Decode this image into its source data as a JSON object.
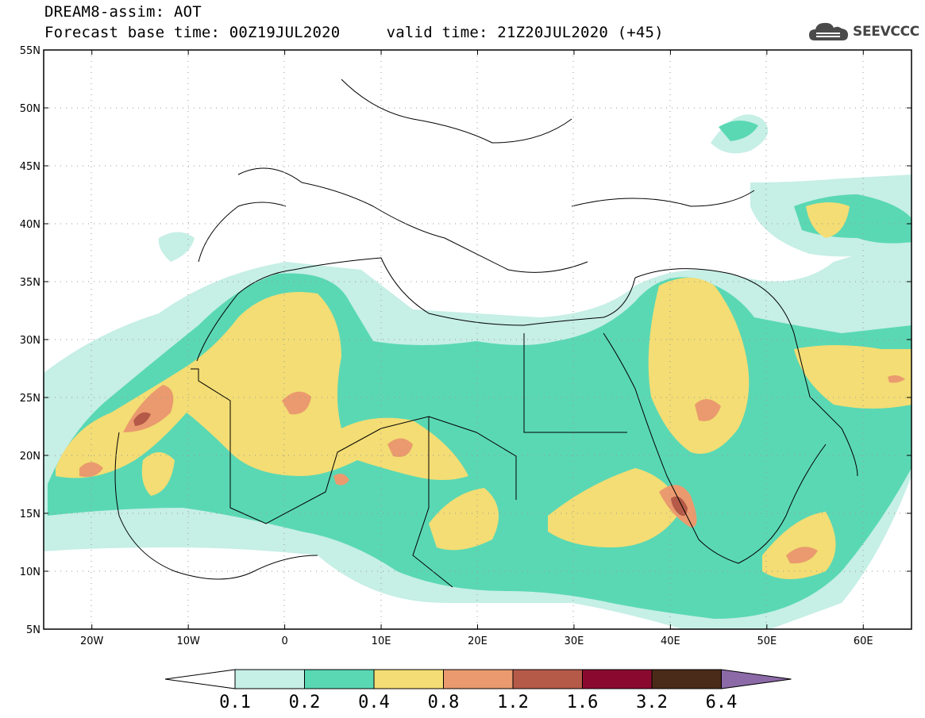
{
  "header": {
    "title": "DREAM8-assim: AOT",
    "subtitle": "Forecast base time: 00Z19JUL2020     valid time: 21Z20JUL2020 (+45)"
  },
  "logo": {
    "text": "SEEVCCC",
    "icon": "cloud-icon",
    "color": "#444444"
  },
  "map": {
    "lon_ticks": [
      {
        "lon": -20,
        "label": "20W"
      },
      {
        "lon": -10,
        "label": "10W"
      },
      {
        "lon": 0,
        "label": "0"
      },
      {
        "lon": 10,
        "label": "10E"
      },
      {
        "lon": 20,
        "label": "20E"
      },
      {
        "lon": 30,
        "label": "30E"
      },
      {
        "lon": 40,
        "label": "40E"
      },
      {
        "lon": 50,
        "label": "50E"
      },
      {
        "lon": 60,
        "label": "60E"
      }
    ],
    "lat_ticks": [
      {
        "lat": 5,
        "label": "5N"
      },
      {
        "lat": 10,
        "label": "10N"
      },
      {
        "lat": 15,
        "label": "15N"
      },
      {
        "lat": 20,
        "label": "20N"
      },
      {
        "lat": 25,
        "label": "25N"
      },
      {
        "lat": 30,
        "label": "30N"
      },
      {
        "lat": 35,
        "label": "35N"
      },
      {
        "lat": 40,
        "label": "40N"
      },
      {
        "lat": 45,
        "label": "45N"
      },
      {
        "lat": 50,
        "label": "50N"
      },
      {
        "lat": 55,
        "label": "55N"
      }
    ],
    "extent": {
      "lon_min": -25,
      "lon_max": 65,
      "lat_min": 5,
      "lat_max": 55
    }
  },
  "colorbar": {
    "levels": [
      "0.1",
      "0.2",
      "0.4",
      "0.8",
      "1.2",
      "1.6",
      "3.2",
      "6.4"
    ],
    "colors": [
      "#ffffff",
      "#c6efe6",
      "#5ad8b4",
      "#f3dd74",
      "#ea9a6e",
      "#b55a48",
      "#8a0a2f",
      "#4a2a18",
      "#8c6aa8"
    ]
  }
}
